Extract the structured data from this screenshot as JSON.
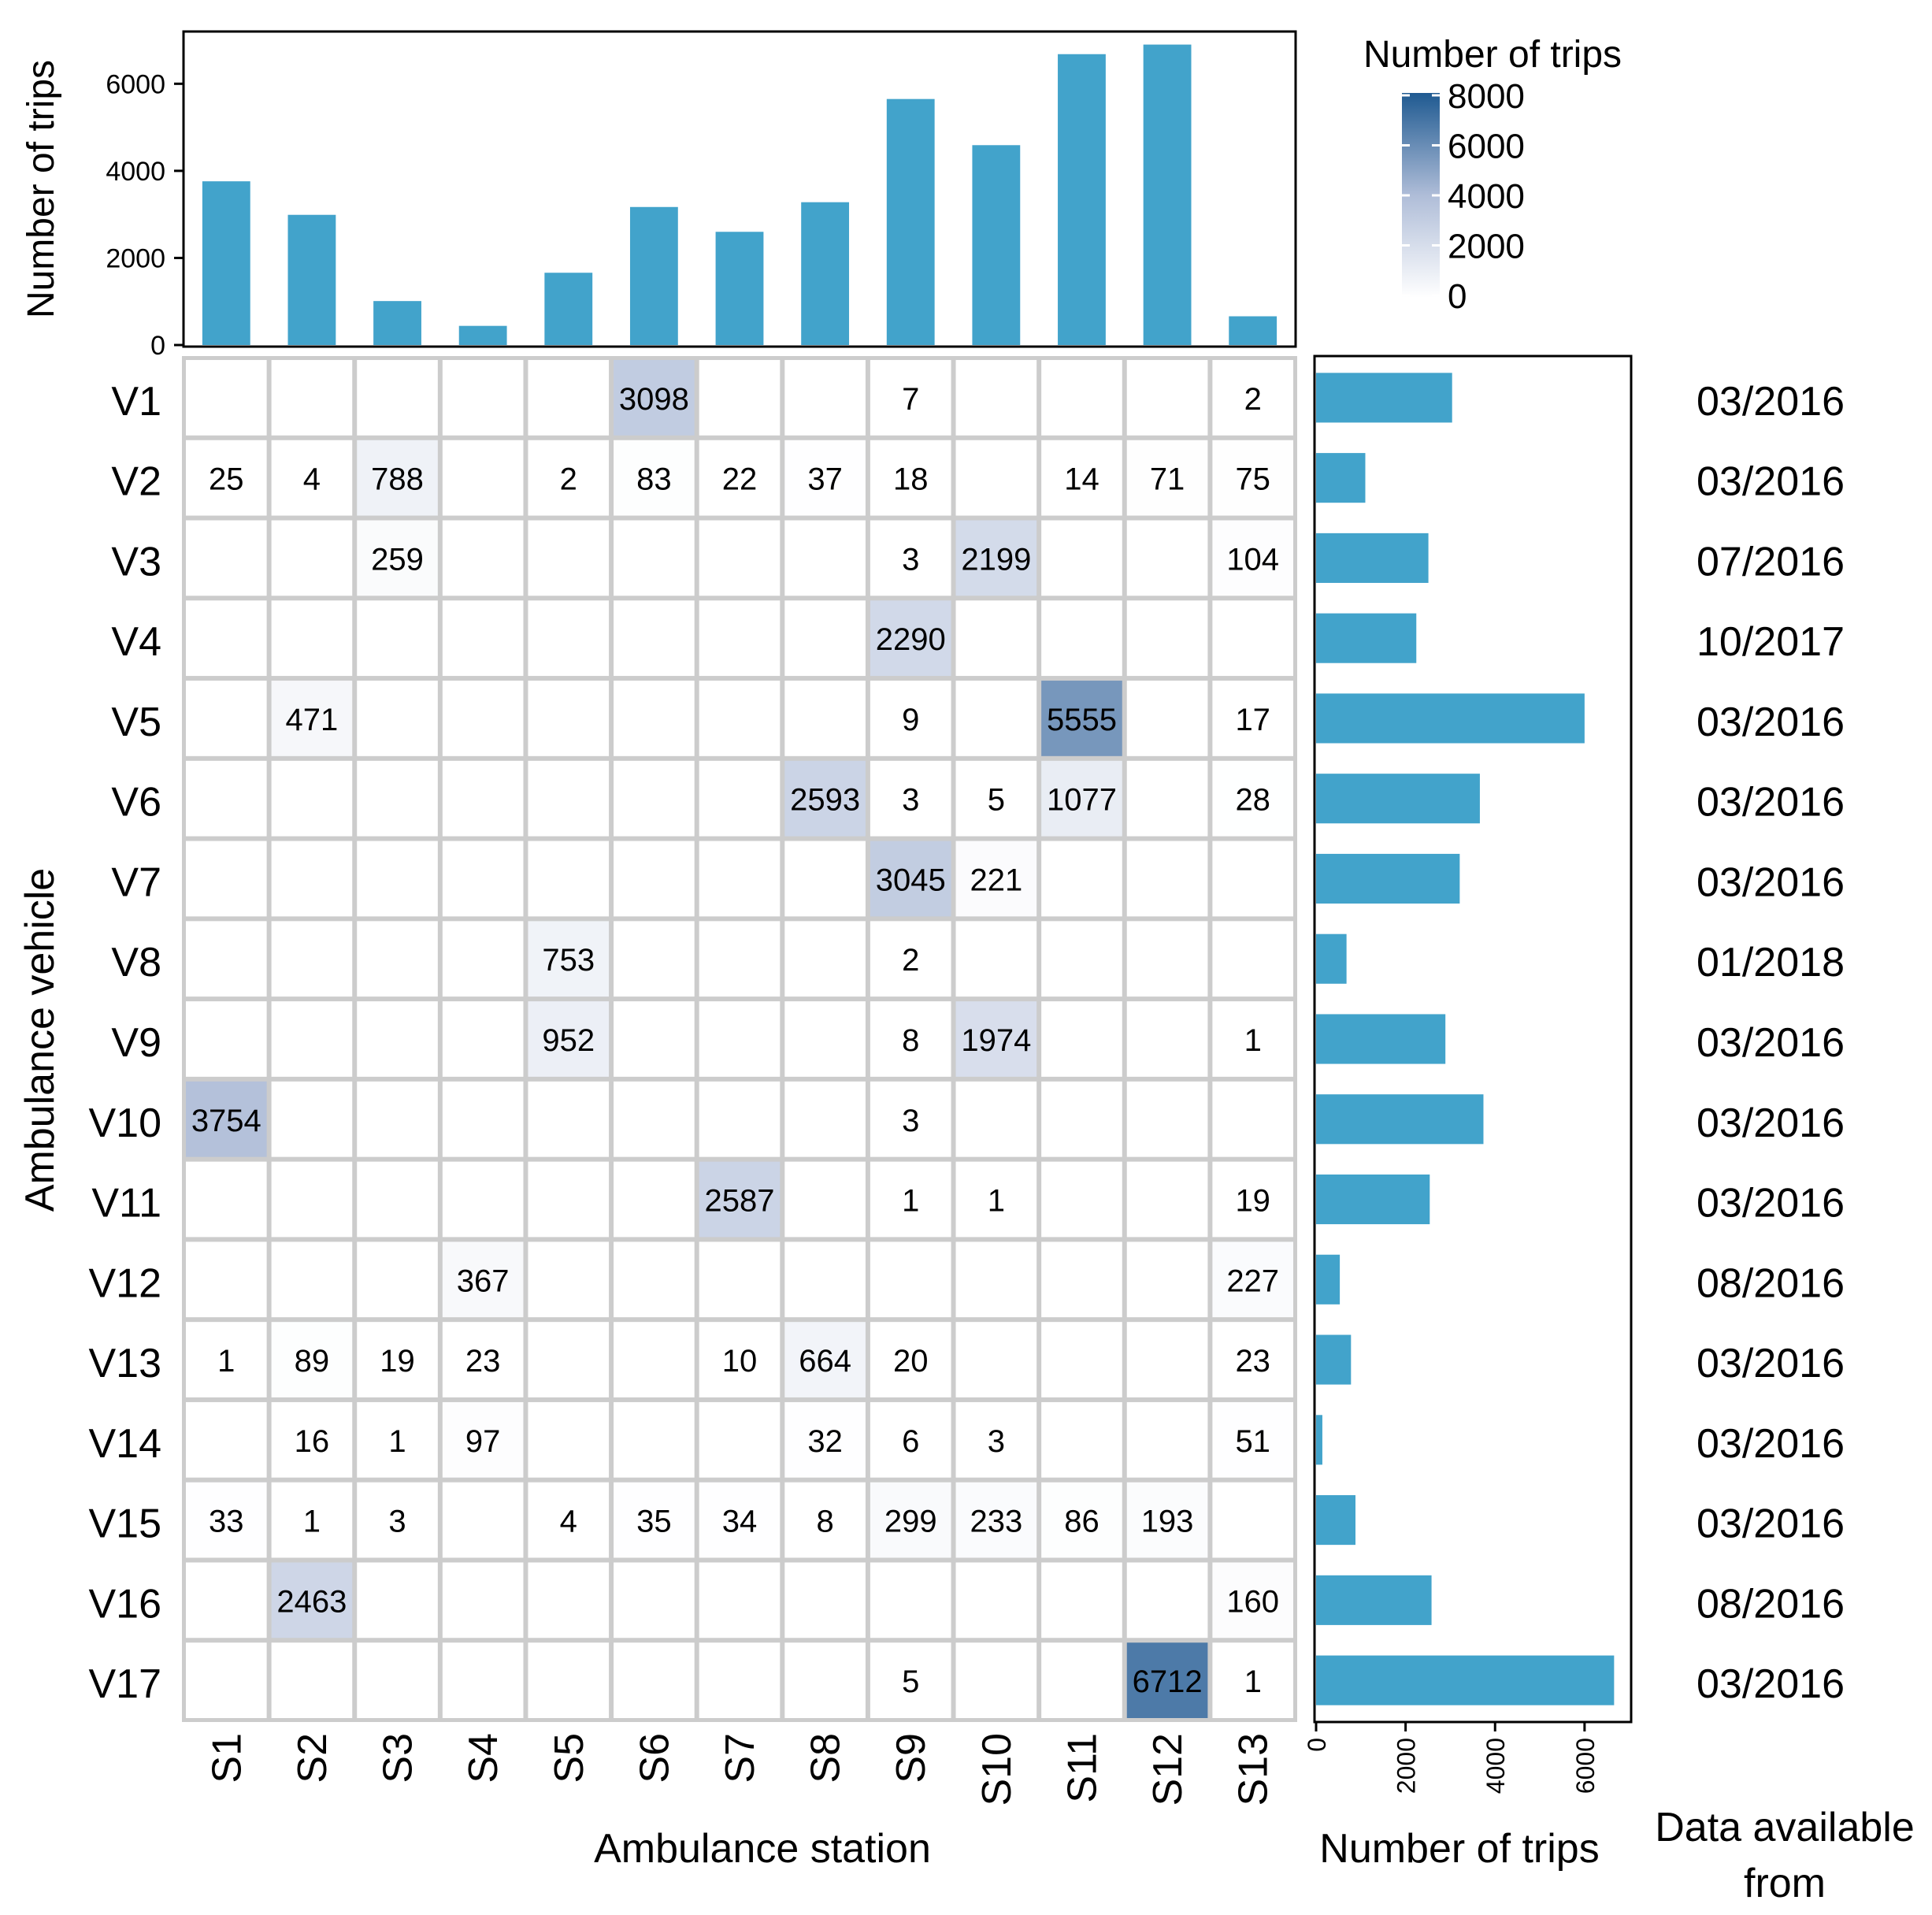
{
  "colors": {
    "bar": "#42A3CB",
    "grid_line": "#CCCCCC",
    "frame": "#000000",
    "scale_low": "#FFFFFF",
    "scale_mid": "#AFBDD8",
    "scale_high": "#1F5A91"
  },
  "chart_data": {
    "type": "heatmap",
    "x_title": "Ambulance station",
    "y_title": "Ambulance vehicle",
    "stations": [
      "S1",
      "S2",
      "S3",
      "S4",
      "S5",
      "S6",
      "S7",
      "S8",
      "S9",
      "S10",
      "S11",
      "S12",
      "S13"
    ],
    "vehicles": [
      "V1",
      "V2",
      "V3",
      "V4",
      "V5",
      "V6",
      "V7",
      "V8",
      "V9",
      "V10",
      "V11",
      "V12",
      "V13",
      "V14",
      "V15",
      "V16",
      "V17"
    ],
    "cells": [
      [
        null,
        null,
        null,
        null,
        null,
        3098,
        null,
        null,
        7,
        null,
        null,
        null,
        2
      ],
      [
        25,
        4,
        788,
        null,
        2,
        83,
        22,
        37,
        18,
        null,
        14,
        71,
        75
      ],
      [
        null,
        null,
        259,
        null,
        null,
        null,
        null,
        null,
        3,
        2199,
        null,
        null,
        104
      ],
      [
        null,
        null,
        null,
        null,
        null,
        null,
        null,
        null,
        2290,
        null,
        null,
        null,
        null
      ],
      [
        null,
        471,
        null,
        null,
        null,
        null,
        null,
        null,
        9,
        null,
        5555,
        null,
        17
      ],
      [
        null,
        null,
        null,
        null,
        null,
        null,
        null,
        2593,
        3,
        5,
        1077,
        null,
        28
      ],
      [
        null,
        null,
        null,
        null,
        null,
        null,
        null,
        null,
        3045,
        221,
        null,
        null,
        null
      ],
      [
        null,
        null,
        null,
        null,
        753,
        null,
        null,
        null,
        2,
        null,
        null,
        null,
        null
      ],
      [
        null,
        null,
        null,
        null,
        952,
        null,
        null,
        null,
        8,
        1974,
        null,
        null,
        1
      ],
      [
        3754,
        null,
        null,
        null,
        null,
        null,
        null,
        null,
        3,
        null,
        null,
        null,
        null
      ],
      [
        null,
        null,
        null,
        null,
        null,
        null,
        2587,
        null,
        1,
        1,
        null,
        null,
        19
      ],
      [
        null,
        null,
        null,
        367,
        null,
        null,
        null,
        null,
        null,
        null,
        null,
        null,
        227
      ],
      [
        1,
        89,
        19,
        23,
        null,
        null,
        10,
        664,
        20,
        null,
        null,
        null,
        23
      ],
      [
        null,
        16,
        1,
        97,
        null,
        null,
        null,
        32,
        6,
        3,
        null,
        null,
        51
      ],
      [
        33,
        1,
        3,
        null,
        4,
        35,
        34,
        8,
        299,
        233,
        86,
        193,
        null
      ],
      [
        null,
        2463,
        null,
        null,
        null,
        null,
        null,
        null,
        null,
        null,
        null,
        null,
        160
      ],
      [
        null,
        null,
        null,
        null,
        null,
        null,
        null,
        null,
        5,
        null,
        null,
        6712,
        1
      ]
    ],
    "color_scale": {
      "title": "Number of trips",
      "range": [
        0,
        8000
      ],
      "ticks": [
        0,
        2000,
        4000,
        6000,
        8000
      ],
      "tick_labels": [
        "0",
        "2000",
        "4000",
        "6000",
        "8000"
      ]
    },
    "top_bars": {
      "type": "bar",
      "ylabel": "Number of trips",
      "ylim": [
        0,
        7200
      ],
      "ticks": [
        0,
        2000,
        4000,
        6000
      ],
      "tick_labels": [
        "0",
        "2000",
        "4000",
        "6000"
      ],
      "values": [
        3760,
        2990,
        1010,
        440,
        1660,
        3170,
        2600,
        3280,
        5650,
        4590,
        6680,
        6900,
        660
      ]
    },
    "right_bars": {
      "type": "bar",
      "orientation": "horizontal",
      "xlabel": "Number of trips",
      "xlim": [
        0,
        6900
      ],
      "ticks": [
        0,
        2000,
        4000,
        6000
      ],
      "tick_labels": [
        "0",
        "2000",
        "4000",
        "6000"
      ],
      "values": [
        3040,
        1100,
        2510,
        2240,
        6000,
        3660,
        3210,
        680,
        2890,
        3740,
        2540,
        530,
        780,
        140,
        880,
        2580,
        6660
      ]
    },
    "dates": {
      "title_line1": "Data available",
      "title_line2": "from",
      "values": [
        "03/2016",
        "03/2016",
        "07/2016",
        "10/2017",
        "03/2016",
        "03/2016",
        "03/2016",
        "01/2018",
        "03/2016",
        "03/2016",
        "03/2016",
        "08/2016",
        "03/2016",
        "03/2016",
        "03/2016",
        "08/2016",
        "03/2016"
      ]
    }
  }
}
